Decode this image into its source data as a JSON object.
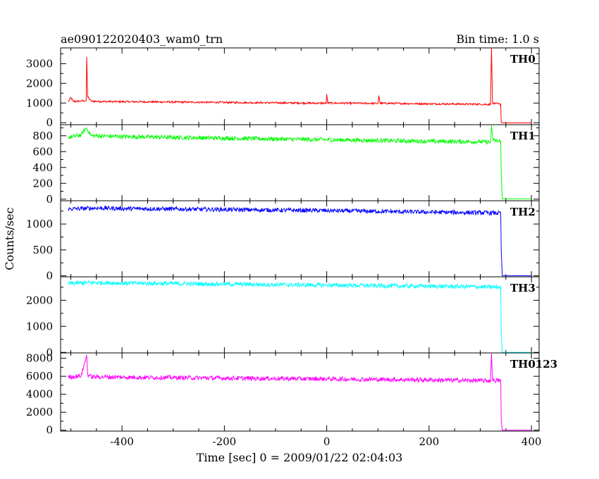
{
  "chart_data": {
    "type": "line",
    "title": "ae090122020403_wam0_trn",
    "subtitle": "Bin time: 1.0 s",
    "xlabel": "Time [sec] 0 = 2009/01/22 02:04:03",
    "ylabel": "Counts/sec",
    "xlim": [
      -520,
      415
    ],
    "x_ticks": [
      -400,
      -200,
      0,
      200,
      400
    ],
    "grid": false,
    "panels": [
      {
        "name": "TH0",
        "color": "#ff0000",
        "ylim": [
          -100,
          3800
        ],
        "y_ticks": [
          0,
          1000,
          2000,
          3000
        ],
        "points": [
          [
            -505,
            1060
          ],
          [
            -500,
            1280
          ],
          [
            -495,
            1080
          ],
          [
            -480,
            1100
          ],
          [
            -470,
            1120
          ],
          [
            -469,
            3350
          ],
          [
            -467,
            1300
          ],
          [
            -460,
            1090
          ],
          [
            -420,
            1070
          ],
          [
            -350,
            1060
          ],
          [
            -300,
            1050
          ],
          [
            -200,
            1030
          ],
          [
            -100,
            1010
          ],
          [
            -1,
            990
          ],
          [
            0,
            1450
          ],
          [
            2,
            1000
          ],
          [
            100,
            980
          ],
          [
            102,
            1380
          ],
          [
            104,
            990
          ],
          [
            200,
            960
          ],
          [
            300,
            940
          ],
          [
            320,
            930
          ],
          [
            322,
            3800
          ],
          [
            324,
            1000
          ],
          [
            335,
            950
          ],
          [
            340,
            930
          ],
          [
            341,
            20
          ],
          [
            343,
            -10
          ],
          [
            400,
            -10
          ]
        ]
      },
      {
        "name": "TH1",
        "color": "#00ff00",
        "ylim": [
          -20,
          940
        ],
        "y_ticks": [
          0,
          200,
          400,
          600,
          800
        ],
        "points": [
          [
            -505,
            780
          ],
          [
            -480,
            810
          ],
          [
            -470,
            900
          ],
          [
            -460,
            800
          ],
          [
            -400,
            790
          ],
          [
            -300,
            780
          ],
          [
            -200,
            770
          ],
          [
            -100,
            760
          ],
          [
            0,
            750
          ],
          [
            100,
            740
          ],
          [
            200,
            730
          ],
          [
            300,
            725
          ],
          [
            320,
            720
          ],
          [
            322,
            930
          ],
          [
            325,
            740
          ],
          [
            340,
            730
          ],
          [
            341,
            320
          ],
          [
            343,
            5
          ],
          [
            400,
            5
          ]
        ]
      },
      {
        "name": "TH2",
        "color": "#0000ff",
        "ylim": [
          -20,
          1450
        ],
        "y_ticks": [
          0,
          500,
          1000
        ],
        "points": [
          [
            -505,
            1290
          ],
          [
            -450,
            1310
          ],
          [
            -400,
            1300
          ],
          [
            -300,
            1290
          ],
          [
            -200,
            1280
          ],
          [
            -100,
            1270
          ],
          [
            0,
            1260
          ],
          [
            100,
            1245
          ],
          [
            200,
            1230
          ],
          [
            300,
            1220
          ],
          [
            340,
            1210
          ],
          [
            341,
            500
          ],
          [
            343,
            0
          ],
          [
            400,
            0
          ]
        ]
      },
      {
        "name": "TH3",
        "color": "#00ffff",
        "ylim": [
          -20,
          2900
        ],
        "y_ticks": [
          0,
          1000,
          2000
        ],
        "points": [
          [
            -505,
            2650
          ],
          [
            -450,
            2680
          ],
          [
            -400,
            2660
          ],
          [
            -300,
            2640
          ],
          [
            -200,
            2620
          ],
          [
            -100,
            2600
          ],
          [
            0,
            2580
          ],
          [
            100,
            2560
          ],
          [
            200,
            2540
          ],
          [
            300,
            2520
          ],
          [
            340,
            2500
          ],
          [
            341,
            800
          ],
          [
            343,
            0
          ],
          [
            400,
            0
          ]
        ]
      },
      {
        "name": "TH0123",
        "color": "#ff00ff",
        "ylim": [
          -100,
          8600
        ],
        "y_ticks": [
          0,
          2000,
          4000,
          6000,
          8000
        ],
        "points": [
          [
            -505,
            5900
          ],
          [
            -480,
            6050
          ],
          [
            -469,
            8300
          ],
          [
            -467,
            6200
          ],
          [
            -460,
            5950
          ],
          [
            -400,
            5900
          ],
          [
            -300,
            5850
          ],
          [
            -200,
            5800
          ],
          [
            -100,
            5750
          ],
          [
            0,
            5700
          ],
          [
            100,
            5650
          ],
          [
            200,
            5600
          ],
          [
            300,
            5520
          ],
          [
            320,
            5500
          ],
          [
            322,
            8600
          ],
          [
            324,
            5550
          ],
          [
            340,
            5500
          ],
          [
            341,
            1200
          ],
          [
            343,
            0
          ],
          [
            400,
            0
          ]
        ]
      }
    ]
  }
}
